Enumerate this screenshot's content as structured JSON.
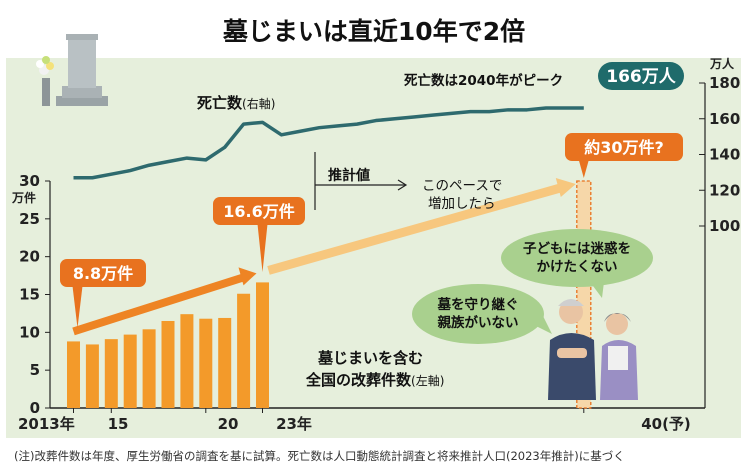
{
  "title": "墓じまいは直近10年で2倍",
  "footnote": "(注)改葬件数は年度、厚生労働省の調査を基に試算。死亡数は人口動態統計調査と将来推計人口(2023年推計)に基づく",
  "colors": {
    "bar": "#f39a2a",
    "arrow_actual": "#ee8424",
    "arrow_projected": "#f7c77e",
    "deaths_line": "#2e6a6e",
    "background": "#e6efdc",
    "callout_orange": "#e8721f",
    "callout_teal": "#1f6b6b"
  },
  "chart_data": {
    "type": "bar",
    "x_tick_labels": [
      "2013年",
      "15",
      "20",
      "23年",
      "40(予)"
    ],
    "left_axis": {
      "unit": "万件",
      "ticks": [
        "0",
        "5",
        "10",
        "15",
        "20",
        "25",
        "30"
      ],
      "ylim": [
        0,
        30
      ]
    },
    "right_axis": {
      "unit": "万人",
      "ticks": [
        "100",
        "120",
        "140",
        "160",
        "180"
      ],
      "ylim": [
        100,
        180
      ]
    },
    "reburials": {
      "name": "墓じまいを含む全国の改葬件数",
      "axis_note": "(左軸)",
      "x": [
        2013,
        2014,
        2015,
        2016,
        2017,
        2018,
        2019,
        2020,
        2021,
        2022,
        2023
      ],
      "values": [
        8.8,
        8.4,
        9.1,
        9.7,
        10.4,
        11.5,
        12.4,
        11.8,
        11.9,
        15.1,
        16.6
      ],
      "projection_x": 2040,
      "projection_value": 30
    },
    "deaths": {
      "name": "死亡数",
      "axis_note": "(右軸)",
      "x": [
        2013,
        2014,
        2015,
        2016,
        2017,
        2018,
        2019,
        2020,
        2021,
        2022,
        2023,
        2024,
        2025,
        2026,
        2027,
        2028,
        2029,
        2030,
        2031,
        2032,
        2033,
        2034,
        2035,
        2036,
        2037,
        2038,
        2039,
        2040
      ],
      "values": [
        127,
        127,
        129,
        131,
        134,
        136,
        138,
        137,
        144,
        157,
        158,
        151,
        153,
        155,
        156,
        157,
        159,
        160,
        161,
        162,
        163,
        164,
        164,
        165,
        165,
        166,
        166,
        166
      ]
    },
    "annotations": {
      "label_2013": "8.8万件",
      "label_2023": "16.6万件",
      "label_2040": "約30万件?",
      "deaths_peak_text": "死亡数は2040年がピーク",
      "deaths_peak_badge": "166万人",
      "estimate_label": "推計値",
      "pace_note_1": "このペースで",
      "pace_note_2": "増加したら",
      "speech_1_line1": "子どもには迷惑を",
      "speech_1_line2": "かけたくない",
      "speech_2_line1": "墓を守り継ぐ",
      "speech_2_line2": "親族がいない"
    }
  }
}
